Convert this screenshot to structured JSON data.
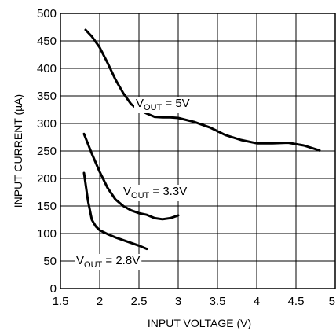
{
  "chart_data": {
    "type": "line",
    "title": "",
    "xlabel": "INPUT VOLTAGE (V)",
    "ylabel": "INPUT CURRENT (µA)",
    "xlim": [
      1.5,
      5
    ],
    "ylim": [
      0,
      500
    ],
    "x_ticks": [
      1.5,
      2,
      2.5,
      3,
      3.5,
      4,
      4.5,
      5
    ],
    "y_ticks": [
      0,
      50,
      100,
      150,
      200,
      250,
      300,
      350,
      400,
      450,
      500
    ],
    "x_tick_labels": [
      "1.5",
      "2",
      "2.5",
      "3",
      "3.5",
      "4",
      "4.5",
      "5"
    ],
    "y_tick_labels": [
      "0",
      "50",
      "100",
      "150",
      "200",
      "250",
      "300",
      "350",
      "400",
      "450",
      "500"
    ],
    "grid": true,
    "series": [
      {
        "label_main": "V",
        "label_sub": "OUT",
        "label_tail": " = 5V",
        "x": [
          1.82,
          1.9,
          2.0,
          2.1,
          2.2,
          2.3,
          2.4,
          2.5,
          2.6,
          2.7,
          2.8,
          2.9,
          3.0,
          3.2,
          3.4,
          3.6,
          3.8,
          4.0,
          4.2,
          4.4,
          4.6,
          4.8
        ],
        "y": [
          470,
          458,
          438,
          410,
          380,
          355,
          335,
          325,
          318,
          312,
          311,
          311,
          310,
          303,
          293,
          279,
          270,
          264,
          264,
          265,
          260,
          251
        ]
      },
      {
        "label_main": "V",
        "label_sub": "OUT",
        "label_tail": " = 3.3V",
        "x": [
          1.8,
          1.9,
          2.0,
          2.1,
          2.2,
          2.3,
          2.4,
          2.5,
          2.6,
          2.7,
          2.8,
          2.9,
          3.0
        ],
        "y": [
          281,
          245,
          212,
          183,
          162,
          150,
          142,
          137,
          134,
          128,
          126,
          128,
          133
        ]
      },
      {
        "label_main": "V",
        "label_sub": "OUT",
        "label_tail": " = 2.8V",
        "x": [
          1.8,
          1.85,
          1.9,
          1.95,
          2.0,
          2.1,
          2.2,
          2.3,
          2.4,
          2.5,
          2.6
        ],
        "y": [
          210,
          160,
          125,
          113,
          106,
          99,
          93,
          88,
          83,
          78,
          72
        ]
      }
    ]
  }
}
